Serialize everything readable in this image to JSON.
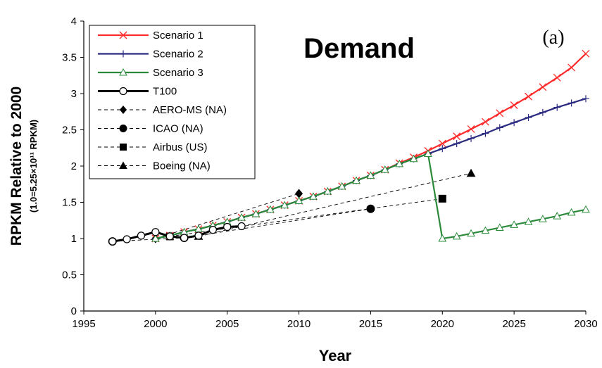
{
  "chart_data": {
    "type": "line",
    "title": "Demand",
    "panel_label": "(a)",
    "xlabel": "Year",
    "ylabel": "RPKM Relative to 2000",
    "ylabel_sub": "(1.0=5.25×10¹¹ RPKM)",
    "xlim": [
      1995,
      2030
    ],
    "ylim": [
      0,
      4
    ],
    "xticks": [
      1995,
      2000,
      2005,
      2010,
      2015,
      2020,
      2025,
      2030
    ],
    "yticks": [
      0,
      0.5,
      1,
      1.5,
      2,
      2.5,
      3,
      3.5,
      4
    ],
    "ytick_labels": [
      "0",
      "0.5",
      "1",
      "1.5",
      "2",
      "2.5",
      "3",
      "3.5",
      "4"
    ],
    "grid": false,
    "legend_position": "top-left",
    "series": [
      {
        "name": "Scenario 1",
        "color": "#ff2a2a",
        "marker": "x",
        "line": "solid",
        "x": [
          2000,
          2001,
          2002,
          2003,
          2004,
          2005,
          2006,
          2007,
          2008,
          2009,
          2010,
          2011,
          2012,
          2013,
          2014,
          2015,
          2016,
          2017,
          2018,
          2019,
          2020,
          2021,
          2022,
          2023,
          2024,
          2025,
          2026,
          2027,
          2028,
          2029,
          2030
        ],
        "y": [
          1.0,
          1.04,
          1.09,
          1.13,
          1.18,
          1.23,
          1.29,
          1.34,
          1.4,
          1.46,
          1.52,
          1.58,
          1.65,
          1.72,
          1.8,
          1.87,
          1.95,
          2.04,
          2.12,
          2.21,
          2.31,
          2.41,
          2.51,
          2.61,
          2.73,
          2.84,
          2.96,
          3.09,
          3.22,
          3.36,
          3.55
        ]
      },
      {
        "name": "Scenario 2",
        "color": "#2a2a80",
        "marker": "+",
        "line": "solid",
        "x": [
          2000,
          2001,
          2002,
          2003,
          2004,
          2005,
          2006,
          2007,
          2008,
          2009,
          2010,
          2011,
          2012,
          2013,
          2014,
          2015,
          2016,
          2017,
          2018,
          2019,
          2020,
          2021,
          2022,
          2023,
          2024,
          2025,
          2026,
          2027,
          2028,
          2029,
          2030
        ],
        "y": [
          1.0,
          1.04,
          1.09,
          1.13,
          1.18,
          1.23,
          1.29,
          1.34,
          1.4,
          1.46,
          1.52,
          1.58,
          1.65,
          1.72,
          1.8,
          1.87,
          1.95,
          2.03,
          2.1,
          2.17,
          2.24,
          2.31,
          2.38,
          2.45,
          2.53,
          2.6,
          2.67,
          2.74,
          2.81,
          2.87,
          2.93
        ]
      },
      {
        "name": "Scenario 3",
        "color": "#2a8a3a",
        "marker": "triangle-open",
        "line": "solid",
        "x": [
          2000,
          2001,
          2002,
          2003,
          2004,
          2005,
          2006,
          2007,
          2008,
          2009,
          2010,
          2011,
          2012,
          2013,
          2014,
          2015,
          2016,
          2017,
          2018,
          2019,
          2020,
          2021,
          2022,
          2023,
          2024,
          2025,
          2026,
          2027,
          2028,
          2029,
          2030
        ],
        "y": [
          1.0,
          1.04,
          1.09,
          1.13,
          1.18,
          1.23,
          1.29,
          1.34,
          1.4,
          1.46,
          1.52,
          1.58,
          1.65,
          1.72,
          1.8,
          1.87,
          1.95,
          2.03,
          2.1,
          2.17,
          1.0,
          1.03,
          1.07,
          1.11,
          1.15,
          1.19,
          1.23,
          1.27,
          1.31,
          1.36,
          1.4
        ]
      },
      {
        "name": "T100",
        "color": "#000000",
        "marker": "circle-open",
        "line": "solid-thick",
        "x": [
          1997,
          1998,
          1999,
          2000,
          2001,
          2002,
          2003,
          2004,
          2005,
          2006
        ],
        "y": [
          0.96,
          0.99,
          1.04,
          1.09,
          1.03,
          1.01,
          1.04,
          1.12,
          1.16,
          1.17
        ]
      },
      {
        "name": "AERO-MS (NA)",
        "color": "#000000",
        "marker": "diamond",
        "line": "dashed",
        "x": [
          2000,
          2010
        ],
        "y": [
          1.0,
          1.62
        ]
      },
      {
        "name": "ICAO (NA)",
        "color": "#000000",
        "marker": "circle",
        "line": "dashed",
        "x": [
          1997,
          2002,
          2015
        ],
        "y": [
          0.96,
          1.01,
          1.41
        ]
      },
      {
        "name": "Airbus (US)",
        "color": "#000000",
        "marker": "square",
        "line": "dashed",
        "x": [
          2001,
          2020
        ],
        "y": [
          1.03,
          1.55
        ]
      },
      {
        "name": "Boeing (NA)",
        "color": "#000000",
        "marker": "triangle",
        "line": "dashed",
        "x": [
          2003,
          2022
        ],
        "y": [
          1.03,
          1.9
        ]
      }
    ]
  }
}
